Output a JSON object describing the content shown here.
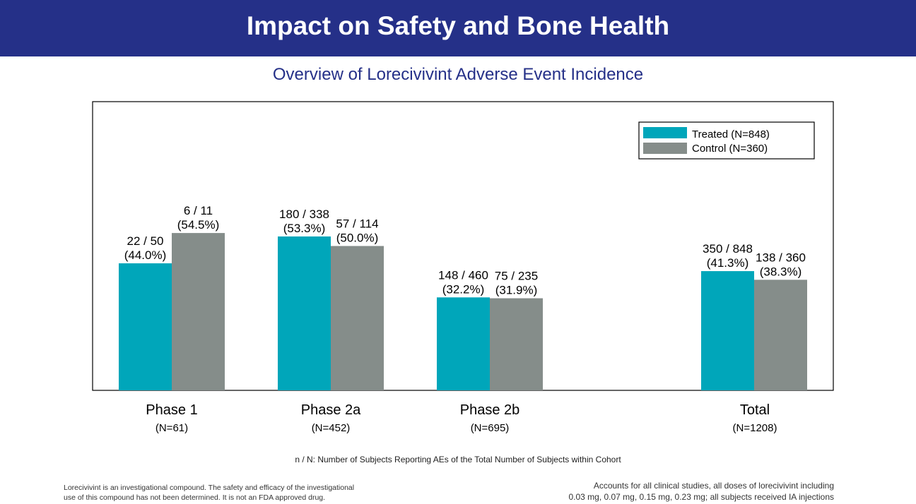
{
  "header": {
    "title": "Impact on Safety and Bone Health",
    "subtitle": "Overview of Lorecivivint Adverse Event Incidence"
  },
  "colors": {
    "banner": "#253088",
    "treated": "#00A6BA",
    "control": "#858D8A"
  },
  "chart_data": {
    "type": "bar",
    "title": "Overview of Lorecivivint Adverse Event Incidence",
    "categories": [
      "Phase 1",
      "Phase 2a",
      "Phase 2b",
      "Total"
    ],
    "category_sublabels": [
      "(N=61)",
      "(N=452)",
      "(N=695)",
      "(N=1208)"
    ],
    "series": [
      {
        "name": "Treated (N=848)",
        "values": [
          44.0,
          53.3,
          32.2,
          41.3
        ],
        "labels_counts": [
          "22 / 50",
          "180 / 338",
          "148 / 460",
          "350 / 848"
        ],
        "labels_pct": [
          "(44.0%)",
          "(53.3%)",
          "(32.2%)",
          "(41.3%)"
        ]
      },
      {
        "name": "Control (N=360)",
        "values": [
          54.5,
          50.0,
          31.9,
          38.3
        ],
        "labels_counts": [
          "6 / 11",
          "57 / 114",
          "75 / 235",
          "138 / 360"
        ],
        "labels_pct": [
          "(54.5%)",
          "(50.0%)",
          "(31.9%)",
          "(38.3%)"
        ]
      }
    ],
    "ylim": [
      0,
      100
    ],
    "xlabel": "",
    "ylabel": "",
    "grid": false,
    "legend_position": "top-right"
  },
  "note": "n / N: Number of Subjects Reporting AEs of the Total Number of Subjects within Cohort",
  "footer": {
    "left_line1": "Lorecivivint is an investigational compound. The safety and efficacy of the investigational",
    "left_line2": "use of this compound has not been determined. It is not an FDA approved drug.",
    "right_line1": "Accounts for all clinical studies, all doses of lorecivivint including",
    "right_line2": "0.03 mg, 0.07 mg, 0.15 mg, 0.23 mg; all subjects received IA injections"
  }
}
